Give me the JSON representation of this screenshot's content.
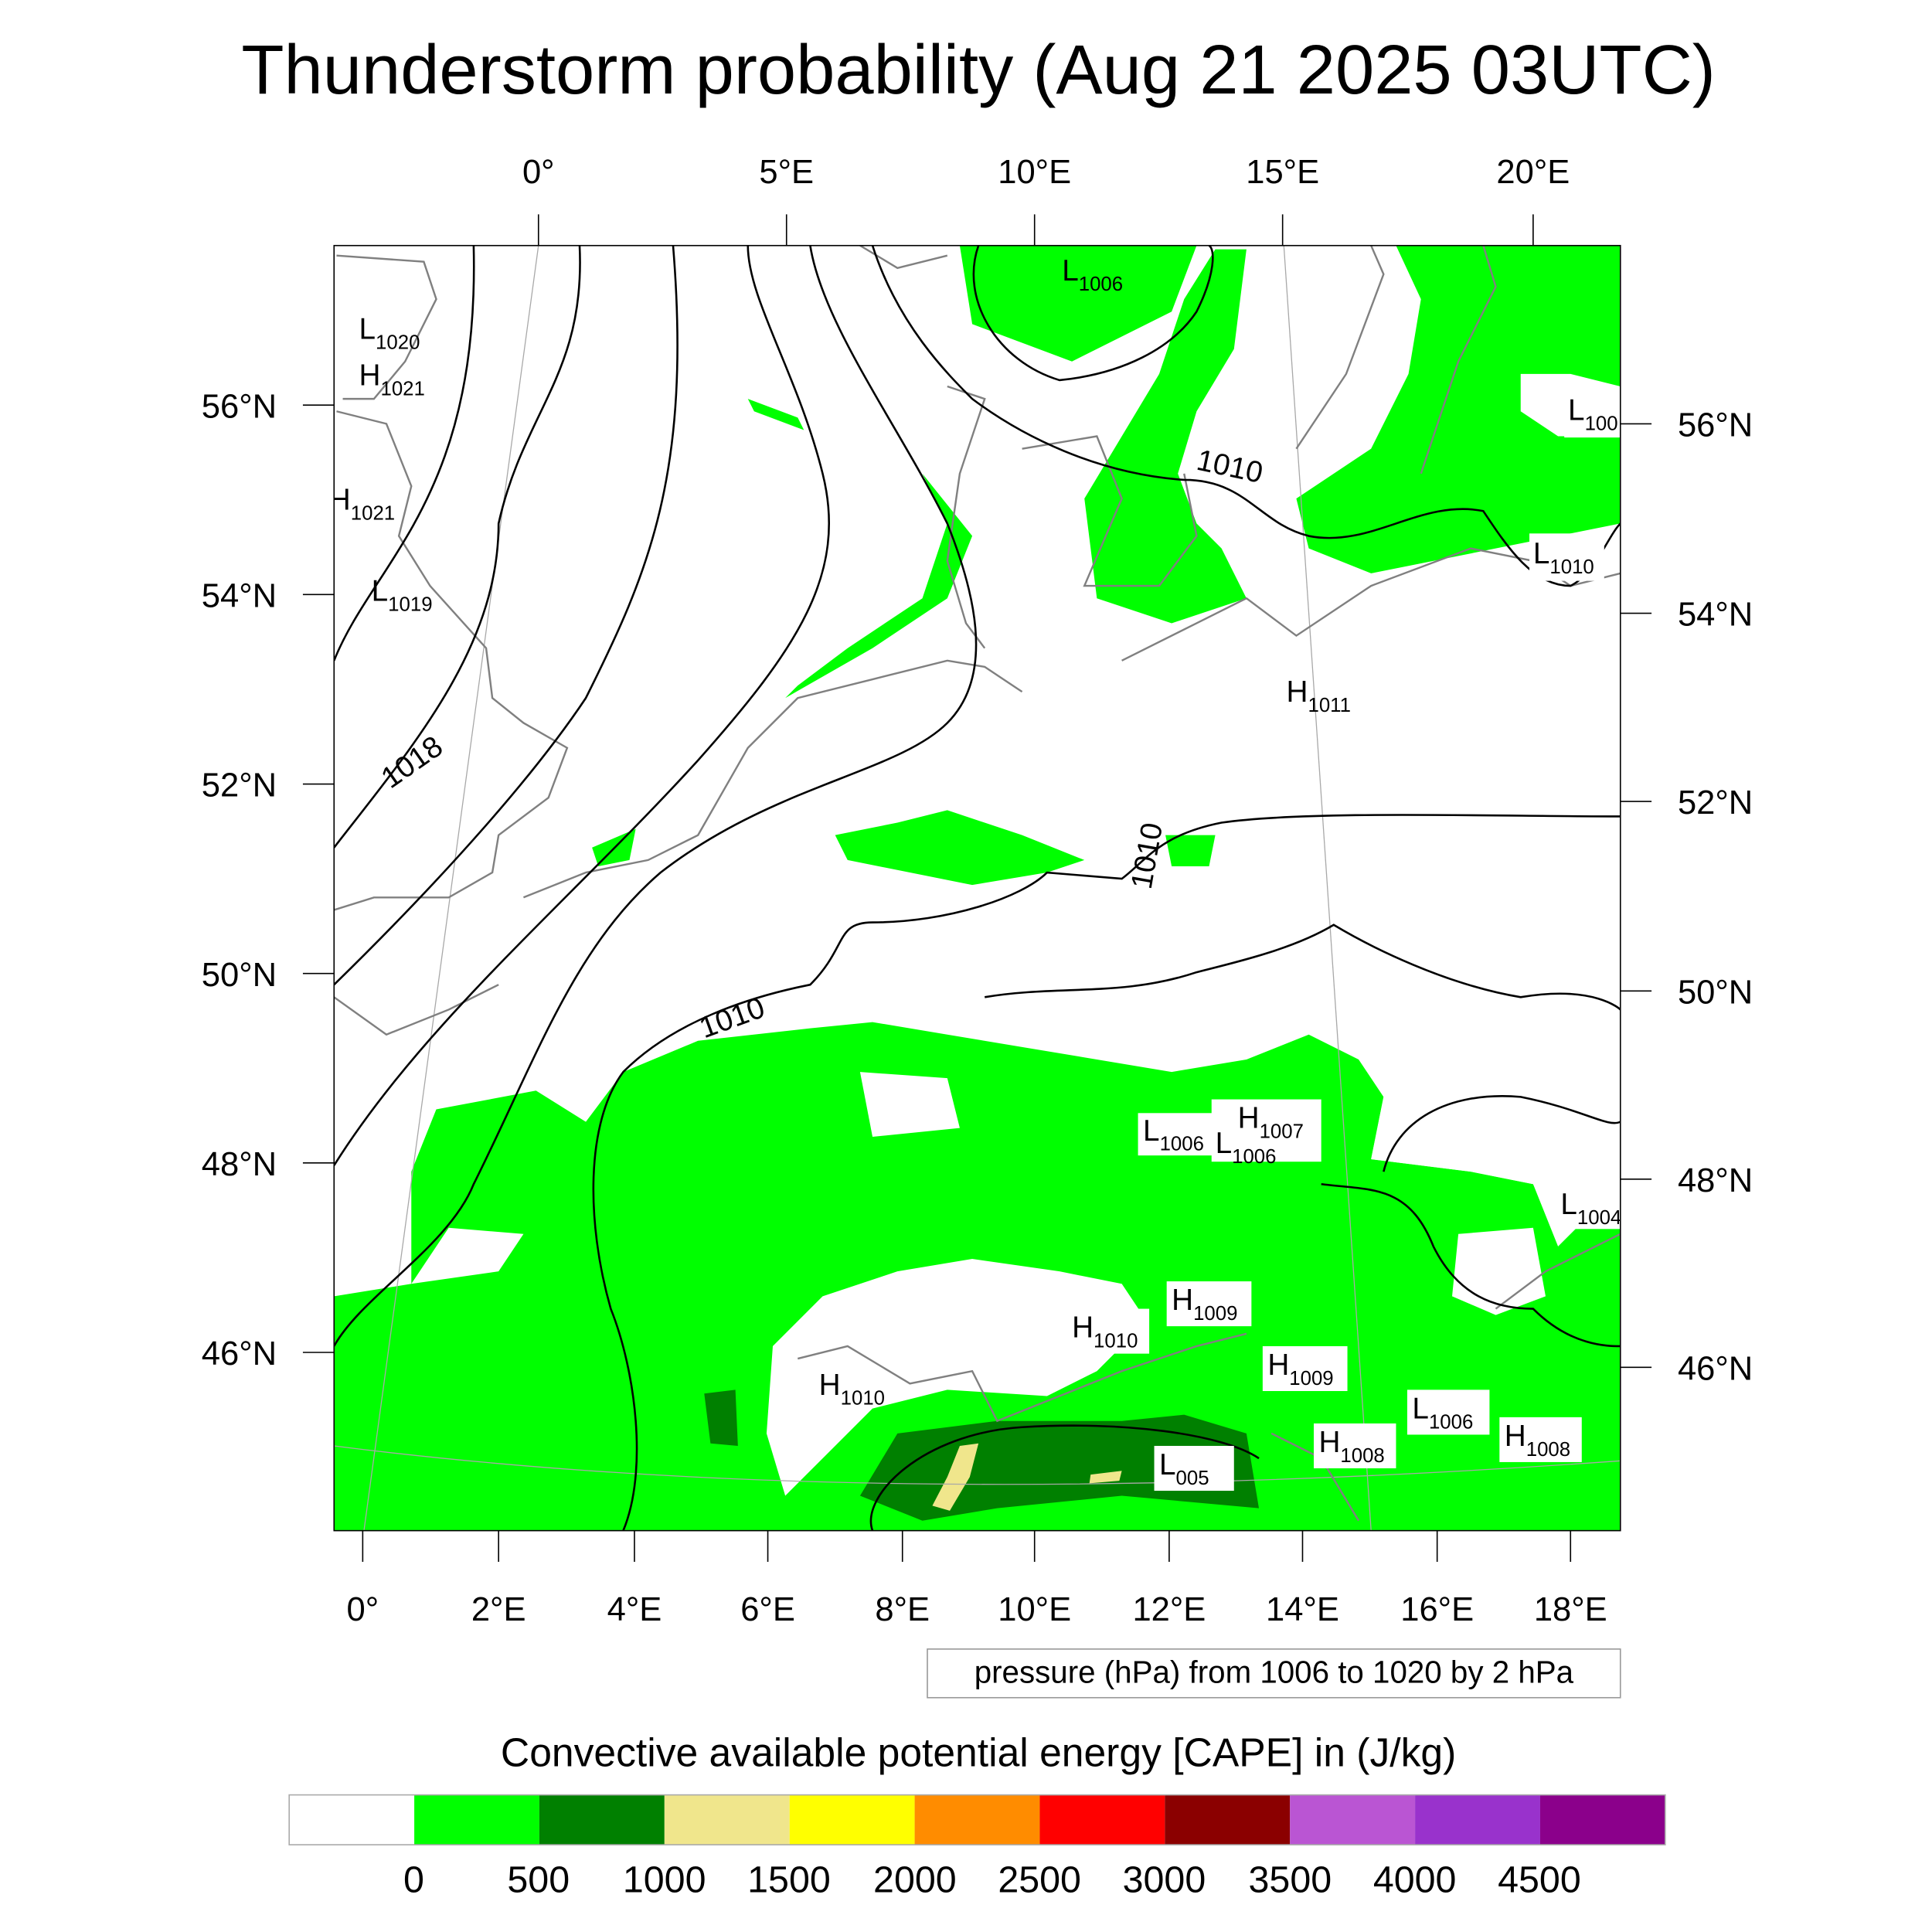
{
  "title": "Thunderstorm probability (Aug 21 2025 03UTC)",
  "axes": {
    "top_lon": [
      "0°",
      "5°E",
      "10°E",
      "15°E",
      "20°E"
    ],
    "bottom_lon": [
      "0°",
      "2°E",
      "4°E",
      "6°E",
      "8°E",
      "10°E",
      "12°E",
      "14°E",
      "16°E",
      "18°E"
    ],
    "left_lat": [
      "56°N",
      "54°N",
      "52°N",
      "50°N",
      "48°N",
      "46°N"
    ],
    "right_lat": [
      "56°N",
      "54°N",
      "52°N",
      "50°N",
      "48°N",
      "46°N"
    ]
  },
  "pressure_centers": [
    {
      "type": "L",
      "value": "1020"
    },
    {
      "type": "H",
      "value": "1021"
    },
    {
      "type": "H",
      "value": "1021"
    },
    {
      "type": "L",
      "value": "1019"
    },
    {
      "type": "L",
      "value": "1006"
    },
    {
      "type": "L",
      "value": "100"
    },
    {
      "type": "L",
      "value": "1010"
    },
    {
      "type": "H",
      "value": "1011"
    },
    {
      "type": "L",
      "value": "1006"
    },
    {
      "type": "H",
      "value": "1007"
    },
    {
      "type": "L",
      "value": "1006"
    },
    {
      "type": "L",
      "value": "1004"
    },
    {
      "type": "H",
      "value": "1009"
    },
    {
      "type": "H",
      "value": "1010"
    },
    {
      "type": "H",
      "value": "1009"
    },
    {
      "type": "H",
      "value": "1010"
    },
    {
      "type": "L",
      "value": "1006"
    },
    {
      "type": "H",
      "value": "1008"
    },
    {
      "type": "H",
      "value": "1008"
    },
    {
      "type": "L",
      "value": "005"
    }
  ],
  "contour_labels": [
    "1018",
    "1010",
    "1010",
    "1010"
  ],
  "contour_info": "pressure (hPa) from 1006 to 1020 by 2 hPa",
  "colorbar": {
    "title": "Convective available potential energy [CAPE] in (J/kg)",
    "colors": [
      "#ffffff",
      "#00ff00",
      "#008000",
      "#f0e68c",
      "#ffff00",
      "#ff8c00",
      "#ff0000",
      "#8b0000",
      "#ba55d3",
      "#9932cc",
      "#8b008b"
    ],
    "labels": [
      "0",
      "500",
      "1000",
      "1500",
      "2000",
      "2500",
      "3000",
      "3500",
      "4000",
      "4500"
    ]
  }
}
